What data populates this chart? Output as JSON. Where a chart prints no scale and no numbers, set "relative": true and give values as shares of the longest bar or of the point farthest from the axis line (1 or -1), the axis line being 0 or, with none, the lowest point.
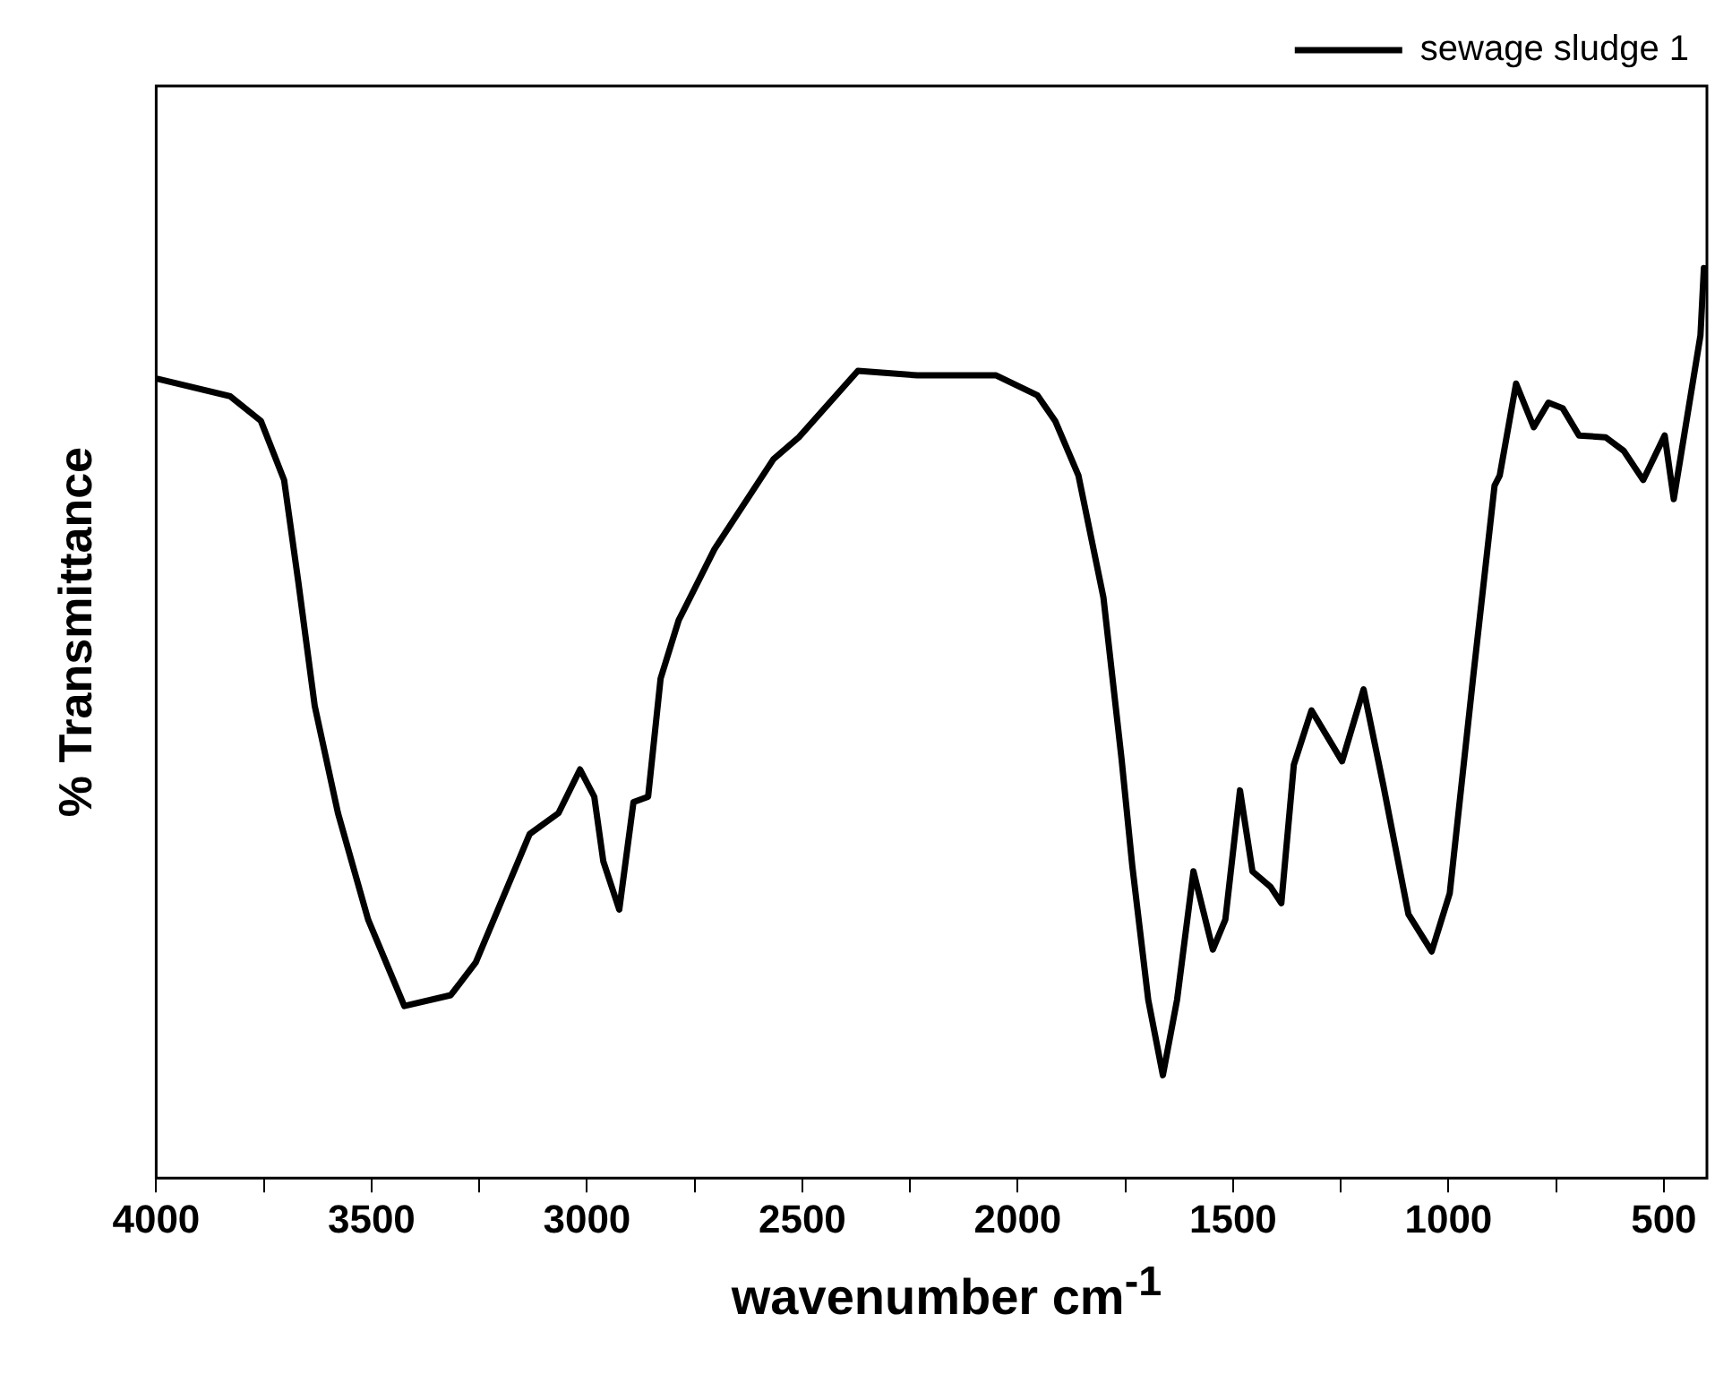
{
  "chart_data": {
    "type": "line",
    "xlabel": "wavenumber cm$^{-1}$",
    "ylabel": "% Transmittance",
    "relative": true,
    "xlim": [
      4000,
      400
    ],
    "xticks": [
      4000,
      {
        "value": 3750,
        "label": null
      },
      3500,
      {
        "value": 3250,
        "label": null
      },
      3000,
      {
        "value": 2750,
        "label": null
      },
      2500,
      {
        "value": 2250,
        "label": null
      },
      2000,
      {
        "value": 1750,
        "label": null
      },
      1500,
      {
        "value": 1250,
        "label": null
      },
      1000,
      {
        "value": 750,
        "label": null
      },
      500
    ],
    "grid": false,
    "legend": "top right",
    "marker": "none",
    "line_style": "solid",
    "series": [
      {
        "name": "sewage sludge 1",
        "color": "#000000",
        "x": [
          3995,
          3828,
          3757,
          3703,
          3670,
          3632,
          3578,
          3508,
          3424,
          3316,
          3258,
          3133,
          3066,
          3016,
          2983,
          2962,
          2925,
          2892,
          2858,
          2829,
          2787,
          2704,
          2567,
          2508,
          2371,
          2233,
          2050,
          1954,
          1913,
          1859,
          1801,
          1759,
          1734,
          1697,
          1663,
          1630,
          1592,
          1547,
          1518,
          1484,
          1455,
          1413,
          1388,
          1359,
          1318,
          1247,
          1197,
          1151,
          1093,
          1039,
          997,
          943,
          893,
          881,
          843,
          802,
          768,
          735,
          697,
          635,
          593,
          548,
          498,
          477,
          415,
          407
        ],
        "values": [
          0.878,
          0.859,
          0.832,
          0.767,
          0.655,
          0.519,
          0.401,
          0.284,
          0.189,
          0.201,
          0.237,
          0.378,
          0.401,
          0.449,
          0.419,
          0.348,
          0.295,
          0.413,
          0.419,
          0.549,
          0.613,
          0.691,
          0.79,
          0.814,
          0.887,
          0.882,
          0.882,
          0.86,
          0.832,
          0.772,
          0.638,
          0.461,
          0.343,
          0.196,
          0.113,
          0.196,
          0.337,
          0.251,
          0.284,
          0.426,
          0.337,
          0.32,
          0.302,
          0.454,
          0.514,
          0.458,
          0.537,
          0.431,
          0.29,
          0.249,
          0.313,
          0.549,
          0.761,
          0.772,
          0.873,
          0.825,
          0.852,
          0.846,
          0.816,
          0.814,
          0.799,
          0.767,
          0.816,
          0.746,
          0.926,
          1
        ]
      }
    ]
  }
}
